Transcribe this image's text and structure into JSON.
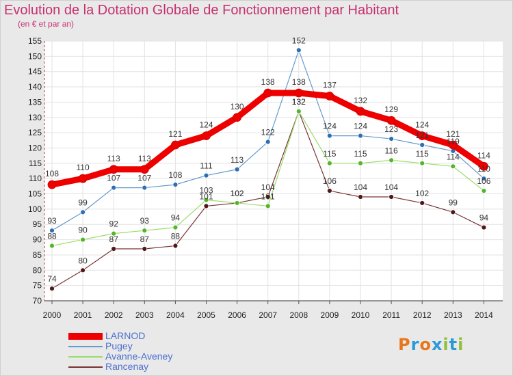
{
  "chart_data": {
    "type": "line",
    "title": "Evolution de la Dotation Globale de Fonctionnement par Habitant",
    "subtitle": "(en € et par an)",
    "xlabel": "",
    "ylabel": "",
    "ylim": [
      70,
      155
    ],
    "yticks": [
      70,
      75,
      80,
      85,
      90,
      95,
      100,
      105,
      110,
      115,
      120,
      125,
      130,
      135,
      140,
      145,
      150,
      155
    ],
    "x": [
      "2000",
      "2001",
      "2002",
      "2003",
      "2004",
      "2005",
      "2006",
      "2007",
      "2008",
      "2009",
      "2010",
      "2011",
      "2012",
      "2013",
      "2014"
    ],
    "series": [
      {
        "name": "LARNOD",
        "color": "#ee0000",
        "values": [
          108,
          110,
          113,
          113,
          121,
          124,
          130,
          138,
          138,
          137,
          132,
          129,
          124,
          121,
          114
        ]
      },
      {
        "name": "Pugey",
        "color": "#6699cc",
        "values": [
          93,
          99,
          107,
          107,
          108,
          111,
          113,
          122,
          152,
          124,
          124,
          123,
          121,
          119,
          110
        ]
      },
      {
        "name": "Avanne-Aveney",
        "color": "#99dd66",
        "values": [
          88,
          90,
          92,
          93,
          94,
          103,
          102,
          101,
          132,
          115,
          115,
          116,
          115,
          114,
          106
        ]
      },
      {
        "name": "Rancenay",
        "color": "#773333",
        "values": [
          74,
          80,
          87,
          87,
          88,
          101,
          102,
          104,
          132,
          106,
          104,
          104,
          102,
          99,
          94
        ]
      }
    ],
    "grid": true,
    "legend": "bottom-left"
  },
  "logo": {
    "text": "Proxiti",
    "colors": [
      "#e8761c",
      "#2a9ad8",
      "#e8761c",
      "#2a9ad8",
      "#8fc03c",
      "#2a9ad8",
      "#8fc03c"
    ]
  }
}
